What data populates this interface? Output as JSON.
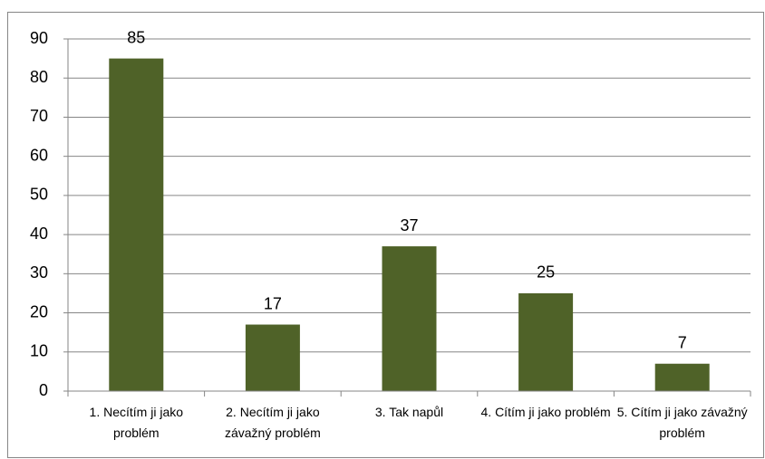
{
  "chart_data": {
    "type": "bar",
    "categories": [
      "1. Necítím ji jako problém",
      "2. Necítím ji jako závažný problém",
      "3. Tak napůl",
      "4. Cítím ji jako problém",
      "5. Cítím ji jako závažný problém"
    ],
    "values": [
      85,
      17,
      37,
      25,
      7
    ],
    "color": "#4f6228",
    "ylim": [
      0,
      90
    ],
    "yticks": [
      0,
      10,
      20,
      30,
      40,
      50,
      60,
      70,
      80,
      90
    ],
    "grid": true
  }
}
